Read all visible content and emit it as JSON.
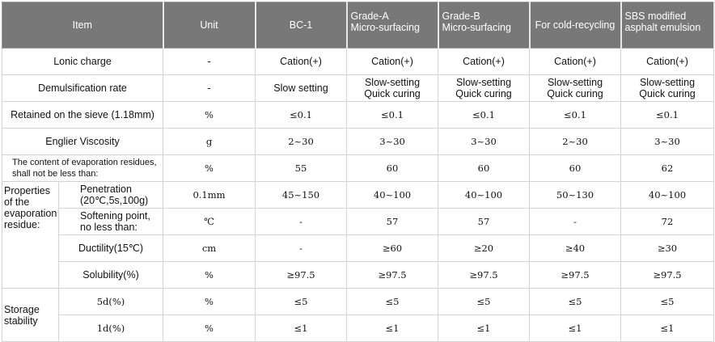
{
  "headers": [
    "Item",
    "Unit",
    "BC-1",
    "Grade-A\nMicro-surfacing",
    "Grade-B\nMicro-surfacing",
    "For cold-recycling",
    "SBS modified\nasphalt emulsion"
  ],
  "rows": [
    {
      "item": "Lonic charge",
      "unit": "-",
      "values": [
        "Cation(+)",
        "Cation(+)",
        "Cation(+)",
        "Cation(+)",
        "Cation(+)"
      ]
    },
    {
      "item": "Demulsification rate",
      "unit": "-",
      "values": [
        "Slow setting",
        "Slow-setting\nQuick curing",
        "Slow-setting\nQuick curing",
        "Slow-setting\nQuick curing",
        "Slow-setting\nQuick curing"
      ]
    },
    {
      "item": "Retained on the sieve (1.18mm)",
      "unit": "%",
      "values": [
        "≤0.1",
        "≤0.1",
        "≤0.1",
        "≤0.1",
        "≤0.1"
      ]
    },
    {
      "item": "Englier Viscosity",
      "unit": "g",
      "values": [
        "2~30",
        "3~30",
        "3~30",
        "2~30",
        "3~30"
      ]
    },
    {
      "item": "The content of evaporation residues,\nshall not be less than:",
      "unit": "%",
      "values": [
        "55",
        "60",
        "60",
        "60",
        "62"
      ]
    }
  ],
  "residue": {
    "group": "Properties\nof the\nevaporation\nresidue:",
    "rows": [
      {
        "item": "Penetration\n(20℃,5s,100g)",
        "unit": "0.1mm",
        "values": [
          "45~150",
          "40~100",
          "40~100",
          "50~130",
          "40~100"
        ]
      },
      {
        "item": "Softening point,\nno less than:",
        "unit": "℃",
        "values": [
          "-",
          "57",
          "57",
          "-",
          "72"
        ]
      },
      {
        "item": "Ductility(15℃)",
        "unit": "cm",
        "values": [
          "-",
          "≥60",
          "≥20",
          "≥40",
          "≥30"
        ]
      },
      {
        "item": "Solubility(%)",
        "unit": "%",
        "values": [
          "≥97.5",
          "≥97.5",
          "≥97.5",
          "≥97.5",
          "≥97.5"
        ]
      }
    ]
  },
  "storage": {
    "group": "Storage\nstability",
    "rows": [
      {
        "item": "5d(%)",
        "unit": "%",
        "values": [
          "≤5",
          "≤5",
          "≤5",
          "≤5",
          "≤5"
        ]
      },
      {
        "item": "1d(%)",
        "unit": "%",
        "values": [
          "≤1",
          "≤1",
          "≤1",
          "≤1",
          "≤1"
        ]
      }
    ]
  },
  "colors": {
    "header_bg": "#787878",
    "header_text": "#ffffff",
    "grid": "#d4d4d4"
  }
}
